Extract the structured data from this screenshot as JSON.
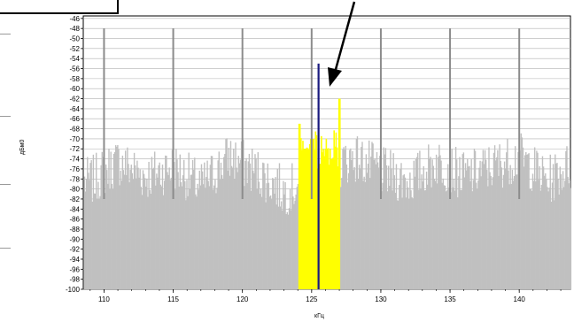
{
  "chart_data": {
    "type": "bar",
    "title": "",
    "xlabel": "кГц",
    "ylabel": "дБм0",
    "xlim": [
      108.5,
      143.7
    ],
    "ylim": [
      -100,
      -45.5
    ],
    "yticks": [
      "-46",
      "-48",
      "-50",
      "-52",
      "-54",
      "-56",
      "-58",
      "-60",
      "-62",
      "-64",
      "-66",
      "-68",
      "-70",
      "-72",
      "-74",
      "-76",
      "-78",
      "-80",
      "-82",
      "-84",
      "-86",
      "-88",
      "-90",
      "-92",
      "-94",
      "-96",
      "-98",
      "-100"
    ],
    "xticks": [
      "110",
      "115",
      "120",
      "125",
      "130",
      "135",
      "140"
    ],
    "noise_floor_dbm0": -80,
    "series": [
      {
        "role": "noise",
        "color": "#c0c0c0",
        "x": [
          109,
          111,
          113,
          115,
          117,
          119,
          121,
          123,
          128,
          130,
          132,
          134,
          136,
          138,
          140,
          142,
          143.5
        ],
        "values": [
          -78,
          -74,
          -77,
          -75,
          -79,
          -73,
          -76,
          -80,
          -73,
          -76,
          -78,
          -74,
          -77,
          -75,
          -73,
          -78,
          -75
        ]
      },
      {
        "role": "band",
        "color": "#ffff00",
        "x": [
          124.0,
          124.5,
          125.0,
          125.5,
          126.0,
          126.5,
          127.0
        ],
        "values": [
          -67,
          -72,
          -70,
          -75,
          -72,
          -74,
          -62
        ]
      },
      {
        "role": "carrier",
        "color": "#1a1a80",
        "x": [
          125.5
        ],
        "values": [
          -55
        ]
      },
      {
        "role": "markers",
        "color": "#8c8c8c",
        "x": [
          110,
          115,
          120,
          125,
          130,
          135,
          140
        ],
        "values": [
          -48,
          -48,
          -48,
          -48,
          -48,
          -48,
          -48
        ]
      }
    ]
  }
}
